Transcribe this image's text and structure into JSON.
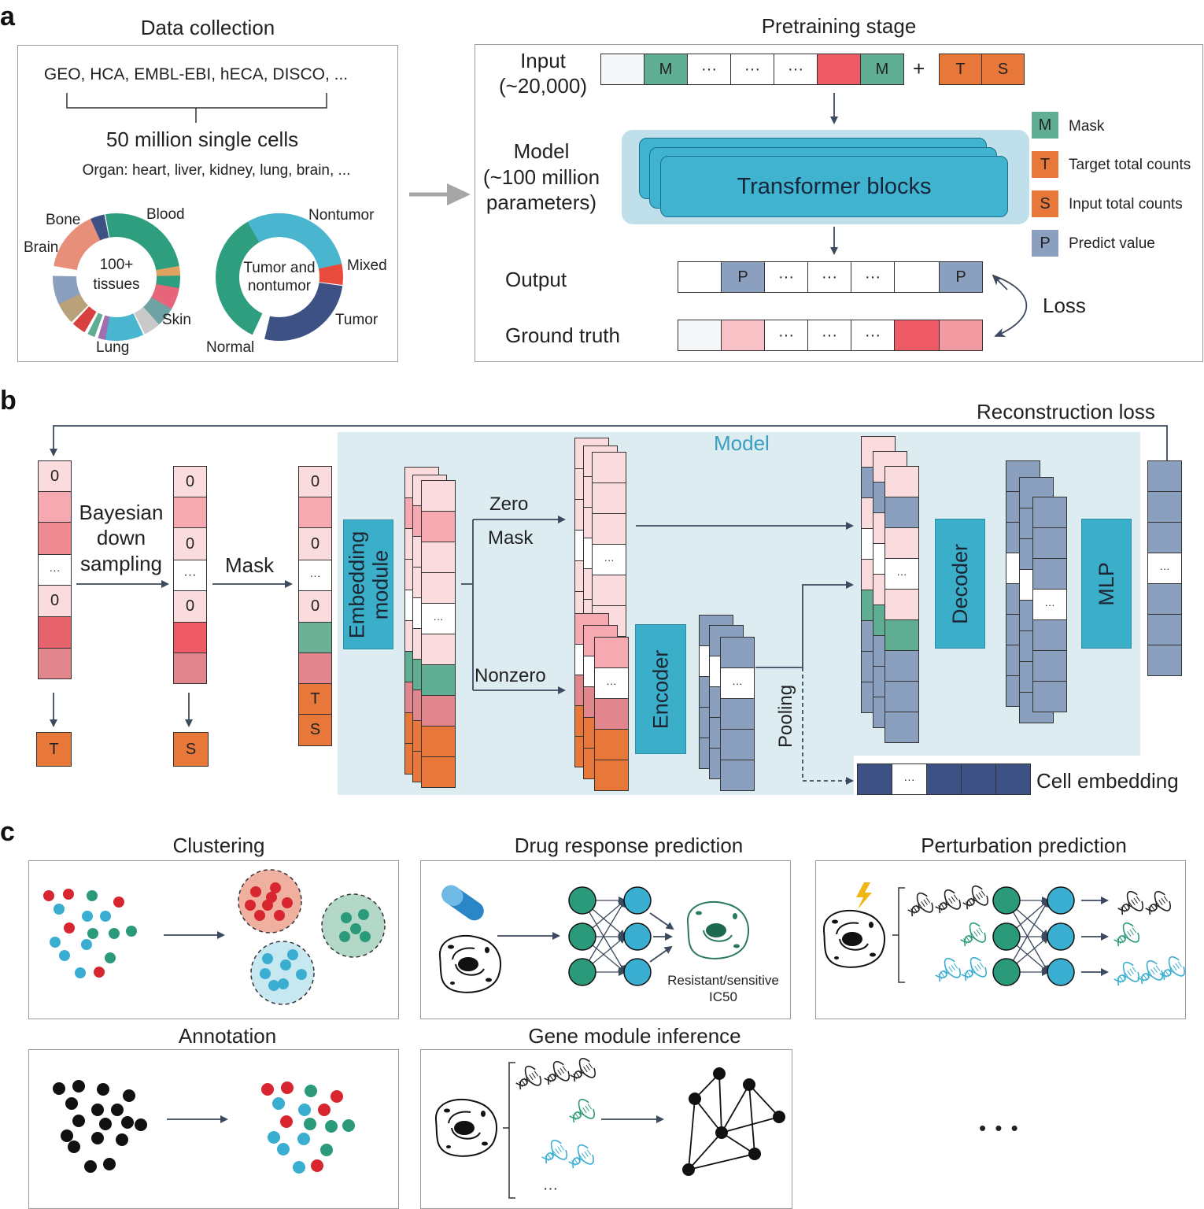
{
  "panels": {
    "a": "a",
    "b": "b",
    "c": "c"
  },
  "a": {
    "data_collection": {
      "title": "Data collection",
      "sources": "GEO, HCA, EMBL-EBI, hECA, DISCO, ...",
      "cells": "50 million single cells",
      "organ": "Organ: heart, liver, kidney, lung, brain, ...",
      "tissue_donut": {
        "center_line1": "100+",
        "center_line2": "tissues",
        "labels": [
          "Bone",
          "Blood",
          "Brain",
          "Skin",
          "Lung"
        ]
      },
      "tumor_donut": {
        "center_line1": "Tumor and",
        "center_line2": "nontumor",
        "labels": [
          "Nontumor",
          "Mixed",
          "Tumor",
          "Normal"
        ]
      }
    },
    "pretraining": {
      "title": "Pretraining stage",
      "input_label_1": "Input",
      "input_label_2": "(~20,000)",
      "model_label_1": "Model",
      "model_label_2": "(~100 million",
      "model_label_3": "parameters)",
      "transformer": "Transformer blocks",
      "output_label": "Output",
      "ground_truth_label": "Ground truth",
      "loss": "Loss",
      "plus": "+",
      "token_m": "M",
      "token_t": "T",
      "token_s": "S",
      "token_p": "P",
      "ellipsis": "···",
      "legend": [
        {
          "key": "M",
          "label": "Mask",
          "color": "#5fae94"
        },
        {
          "key": "T",
          "label": "Target total counts",
          "color": "#e8773a"
        },
        {
          "key": "S",
          "label": "Input total counts",
          "color": "#e8773a"
        },
        {
          "key": "P",
          "label": "Predict value",
          "color": "#8b9fbf"
        }
      ]
    }
  },
  "b": {
    "reconstruction_loss": "Reconstruction loss",
    "model": "Model",
    "bayesian_1": "Bayesian",
    "bayesian_2": "down",
    "bayesian_3": "sampling",
    "mask": "Mask",
    "zero": "Zero",
    "mask2": "Mask",
    "nonzero": "Nonzero",
    "embedding_1": "Embedding",
    "embedding_2": "module",
    "encoder": "Encoder",
    "decoder": "Decoder",
    "mlp": "MLP",
    "pooling": "Pooling",
    "cell_embedding": "Cell embedding",
    "zero_val": "0",
    "ellipsis": "···",
    "token_t": "T",
    "token_s": "S"
  },
  "c": {
    "clustering": "Clustering",
    "drug": "Drug response prediction",
    "drug_caption_1": "Resistant/sensitive",
    "drug_caption_2": "IC50",
    "perturbation": "Perturbation prediction",
    "annotation": "Annotation",
    "gene_module": "Gene module inference",
    "more": "• • •",
    "ellipsis": "···"
  },
  "colors": {
    "teal": "#5fae94",
    "orange": "#e8773a",
    "red": "#ee5b66",
    "pink": "#f6a9b0",
    "lightpink": "#fbdcde",
    "slate": "#8b9fbf",
    "navy": "#3d5184",
    "cyan": "#3fb3cf",
    "model_bg": "#dcecf1"
  }
}
